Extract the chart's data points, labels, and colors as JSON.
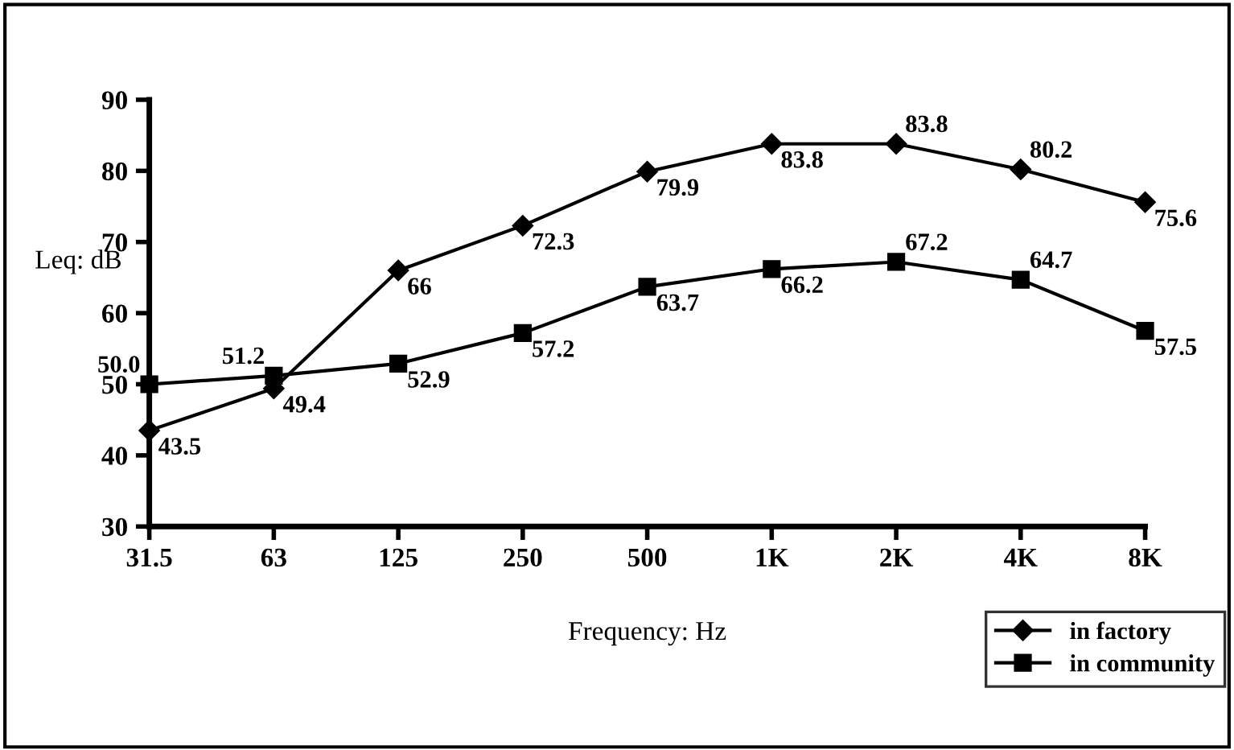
{
  "chart_data": {
    "type": "line",
    "xlabel": "Frequency: Hz",
    "ylabel": "Leq: dB",
    "categories": [
      "31.5",
      "63",
      "125",
      "250",
      "500",
      "1K",
      "2K",
      "4K",
      "8K"
    ],
    "ylim": [
      30,
      90
    ],
    "yticks": [
      30,
      40,
      50,
      60,
      70,
      80,
      90
    ],
    "grid": false,
    "legend": "bottom right",
    "line_style": "solid",
    "series": [
      {
        "name": "in factory",
        "color": "#000000",
        "marker": "diamond",
        "values": [
          43.5,
          49.4,
          66,
          72.3,
          79.9,
          83.8,
          83.8,
          80.2,
          75.6
        ],
        "value_labels": [
          "43.5",
          "49.4",
          "66",
          "72.3",
          "79.9",
          "83.8",
          "83.8",
          "80.2",
          "75.6"
        ]
      },
      {
        "name": "in community",
        "color": "#000000",
        "marker": "square",
        "values": [
          50.0,
          51.2,
          52.9,
          57.2,
          63.7,
          66.2,
          67.2,
          64.7,
          57.5
        ],
        "value_labels": [
          "50.0",
          "51.2",
          "52.9",
          "57.2",
          "63.7",
          "66.2",
          "67.2",
          "64.7",
          "57.5"
        ]
      }
    ]
  }
}
